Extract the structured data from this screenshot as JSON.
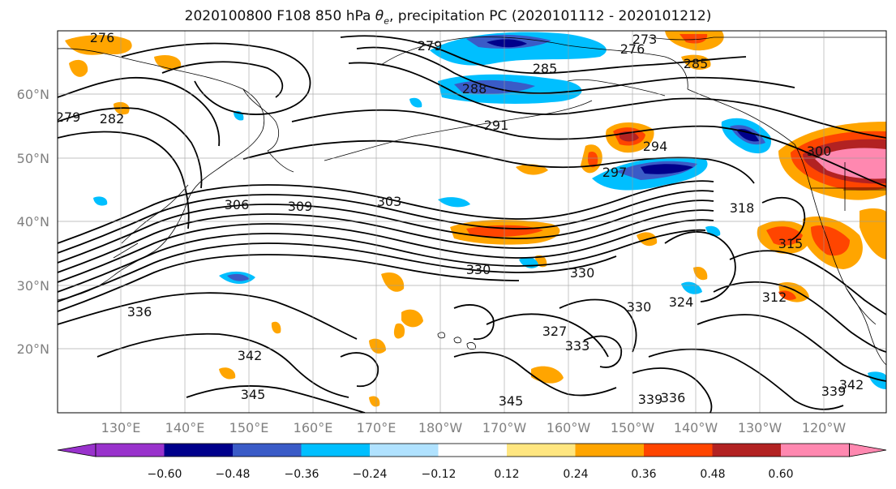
{
  "title": {
    "prefix": "2020100800 F108 850 hPa ",
    "theta": "θ",
    "theta_sub": "e",
    "suffix": ", precipitation PC (2020101112 - 2020101212)"
  },
  "lat_labels": [
    "60°N",
    "50°N",
    "40°N",
    "30°N",
    "20°N"
  ],
  "lon_labels": [
    "130°E",
    "140°E",
    "150°E",
    "160°E",
    "170°E",
    "180°W",
    "170°W",
    "160°W",
    "150°W",
    "140°W",
    "130°W",
    "120°W"
  ],
  "colorbar": {
    "ticks": [
      "−0.60",
      "−0.48",
      "−0.36",
      "−0.24",
      "−0.12",
      "0.12",
      "0.24",
      "0.36",
      "0.48",
      "0.60"
    ],
    "colors": [
      "#9932cc",
      "#00008b",
      "#3a5bc7",
      "#00bfff",
      "#b0e2ff",
      "#ffffff",
      "#ffe680",
      "#ffa500",
      "#ff4500",
      "#b22222",
      "#ff88b0",
      "#ff88b0"
    ]
  },
  "contour_labels": [
    "276",
    "279",
    "282",
    "279",
    "285",
    "288",
    "291",
    "273",
    "276",
    "285",
    "294",
    "297",
    "300",
    "303",
    "306",
    "309",
    "312",
    "315",
    "318",
    "324",
    "327",
    "330",
    "330",
    "330",
    "333",
    "336",
    "336",
    "339",
    "339",
    "342",
    "342",
    "345",
    "345"
  ],
  "colors": {
    "contour": "#000000",
    "grid": "#9a9a9a",
    "coast": "#000000"
  }
}
